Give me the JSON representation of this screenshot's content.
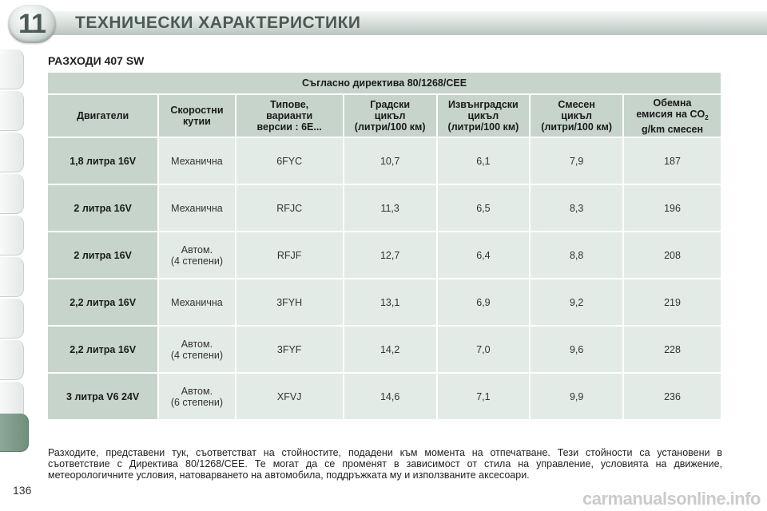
{
  "header": {
    "chapter_number": "11",
    "title": "ТЕХНИЧЕСКИ ХАРАКТЕРИСТИКИ"
  },
  "section_title": "РАЗХОДИ 407 SW",
  "table": {
    "caption": "Съгласно директива 80/1268/CEE",
    "columns": [
      {
        "lines": [
          "Двигатели"
        ]
      },
      {
        "lines": [
          "Скоростни",
          "кутии"
        ]
      },
      {
        "lines": [
          "Типове,",
          "варианти",
          "версии : 6E..."
        ]
      },
      {
        "lines": [
          "Градски",
          "цикъл",
          "(литри/100 км)"
        ]
      },
      {
        "lines": [
          "Извънградски",
          "цикъл",
          "(литри/100 км)"
        ]
      },
      {
        "lines": [
          "Смесен",
          "цикъл",
          "(литри/100 км)"
        ]
      },
      {
        "lines": [
          "Обемна",
          "емисия на CO",
          "g/km смесен"
        ],
        "sub": "2"
      }
    ],
    "rows": [
      {
        "engine": "1,8 литра 16V",
        "gearbox": [
          "Механична"
        ],
        "type": "6FYC",
        "urban": "10,7",
        "extra_urban": "6,1",
        "combined": "7,9",
        "co2": "187"
      },
      {
        "engine": "2 литра 16V",
        "gearbox": [
          "Механична"
        ],
        "type": "RFJC",
        "urban": "11,3",
        "extra_urban": "6,5",
        "combined": "8,3",
        "co2": "196"
      },
      {
        "engine": "2 литра 16V",
        "gearbox": [
          "Автом.",
          "(4 степени)"
        ],
        "type": "RFJF",
        "urban": "12,7",
        "extra_urban": "6,4",
        "combined": "8,8",
        "co2": "208"
      },
      {
        "engine": "2,2 литра 16V",
        "gearbox": [
          "Механична"
        ],
        "type": "3FYH",
        "urban": "13,1",
        "extra_urban": "6,9",
        "combined": "9,2",
        "co2": "219"
      },
      {
        "engine": "2,2 литра 16V",
        "gearbox": [
          "Автом.",
          "(4 степени)"
        ],
        "type": "3FYF",
        "urban": "14,2",
        "extra_urban": "7,0",
        "combined": "9,6",
        "co2": "228"
      },
      {
        "engine": "3 литра V6 24V",
        "gearbox": [
          "Автом.",
          "(6 степени)"
        ],
        "type": "XFVJ",
        "urban": "14,6",
        "extra_urban": "7,1",
        "combined": "9,9",
        "co2": "236"
      }
    ]
  },
  "footnote": "Разходите, представени тук, съответстват на стойностите, подадени към момента на отпечатване. Тези стойности са установени в съответствие с Директива 80/1268/CEE. Те могат да се променят в зависимост от стила на управление, условията на движение, метеорологичните условия, натоварването на автомобила, поддръжката му и използваните аксесоари.",
  "page_number": "136",
  "watermark": "carmanualsonline.info",
  "colors": {
    "header_accent": "#4b5a54",
    "table_header_bg": "#c7d4cc",
    "table_cell_bg": "#e3ebe6",
    "active_tab": "#6f8f7c"
  }
}
